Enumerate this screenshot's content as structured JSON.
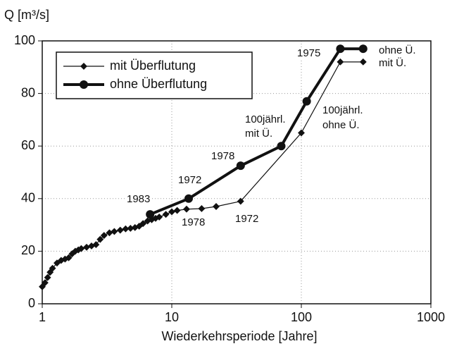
{
  "chart_data": {
    "type": "line",
    "ylabel": "Q [m³/s]",
    "xlabel": "Wiederkehrsperiode [Jahre]",
    "xlog": true,
    "xlim": [
      1,
      1000
    ],
    "xticks": [
      1,
      10,
      100,
      1000
    ],
    "ylim": [
      0,
      100
    ],
    "yticks": [
      0,
      20,
      40,
      60,
      80,
      100
    ],
    "grid": true,
    "legend": "upper left",
    "series": [
      {
        "name": "mit Überflutung",
        "color": "#111111",
        "width": 1.2,
        "marker": "diamond",
        "x": [
          1,
          1.05,
          1.1,
          1.15,
          1.2,
          1.3,
          1.4,
          1.5,
          1.6,
          1.7,
          1.8,
          1.9,
          2,
          2.2,
          2.4,
          2.6,
          2.8,
          3,
          3.3,
          3.6,
          4,
          4.4,
          4.8,
          5.2,
          5.6,
          6,
          6.5,
          7,
          7.5,
          8,
          9,
          10,
          11,
          13,
          17,
          22,
          34,
          100,
          200,
          300
        ],
        "values": [
          6.5,
          8,
          10,
          12,
          13.5,
          15.5,
          16.5,
          17,
          17.5,
          19,
          20,
          20.5,
          21,
          21.5,
          22,
          22.5,
          24.5,
          26,
          27,
          27.5,
          28,
          28.5,
          28.7,
          29,
          29.5,
          30.5,
          31.5,
          32,
          32.5,
          33,
          34,
          35,
          35.5,
          36,
          36.2,
          37,
          39,
          65,
          92,
          92
        ]
      },
      {
        "name": "ohne Überflutung",
        "color": "#111111",
        "width": 4,
        "marker": "circle",
        "x": [
          6.8,
          13.5,
          34,
          70,
          110,
          200,
          300
        ],
        "values": [
          34,
          40,
          52.5,
          60,
          77,
          97,
          97
        ]
      }
    ],
    "annotations": [
      "1983",
      "1972",
      "1978",
      "1978",
      "1972",
      "1975",
      "100jährl.",
      "mit Ü.",
      "100jährl.",
      "ohne Ü.",
      "ohne Ü.",
      "mit Ü."
    ]
  }
}
